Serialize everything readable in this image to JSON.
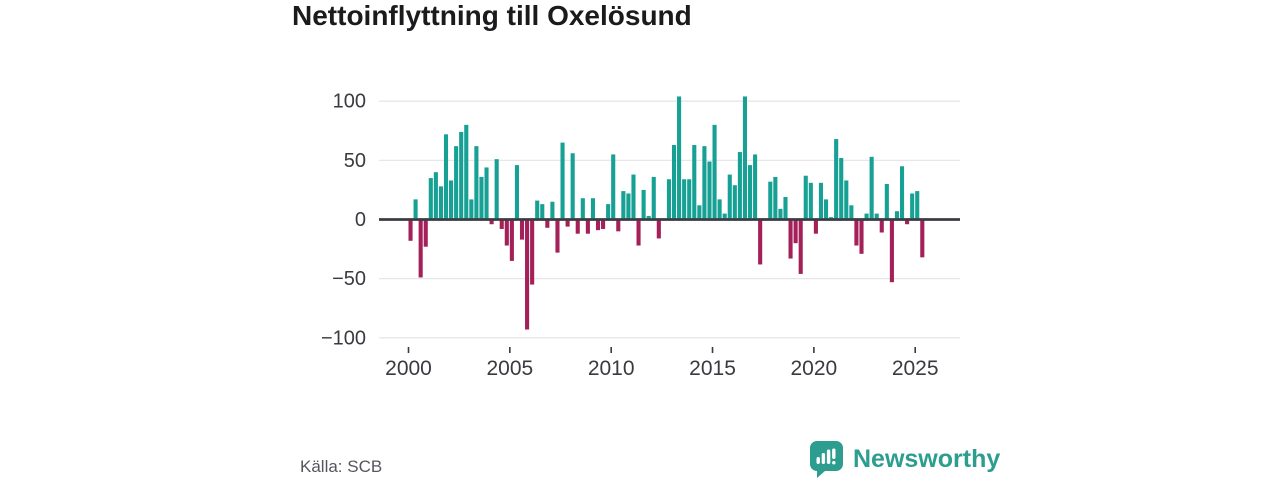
{
  "header": {
    "title": "Nettoinflyttning till Oxelösund"
  },
  "footer": {
    "source_label": "Källa: SCB",
    "brand": "Newsworthy"
  },
  "colors": {
    "positive_bar": "#17A094",
    "negative_bar": "#A32158",
    "title_text": "#1b1b1d",
    "axis_text": "#3a3a40",
    "gridline": "#e7e7e9",
    "zero_line": "#3b3b42",
    "source_text": "#56565e",
    "brand_teal": "#2D9D90",
    "logo_glyph": "#ffffff"
  },
  "chart_data": {
    "type": "bar",
    "title": "Nettoinflyttning till Oxelösund",
    "xlabel": "",
    "ylabel": "",
    "start_period": "2000Q1",
    "frequency": "quarterly",
    "values": [
      -18,
      17,
      -49,
      -23,
      35,
      40,
      28,
      72,
      33,
      62,
      74,
      80,
      17,
      62,
      36,
      44,
      -4,
      51,
      -8,
      -22,
      -35,
      46,
      -17,
      -93,
      -55,
      16,
      13,
      -7,
      15,
      -28,
      65,
      -6,
      56,
      -12,
      18,
      -12,
      18,
      -9,
      -8,
      13,
      55,
      -10,
      24,
      22,
      38,
      -22,
      25,
      3,
      36,
      -16,
      0,
      34,
      63,
      104,
      34,
      34,
      63,
      12,
      62,
      49,
      80,
      17,
      5,
      38,
      29,
      57,
      104,
      46,
      55,
      -38,
      0,
      32,
      36,
      9,
      19,
      -33,
      -20,
      -46,
      37,
      31,
      -12,
      31,
      17,
      2,
      68,
      52,
      33,
      12,
      -22,
      -29,
      5,
      53,
      5,
      -11,
      30,
      -53,
      7,
      45,
      -4,
      22,
      24,
      -32
    ],
    "yticks": [
      100,
      50,
      0,
      -50,
      -100
    ],
    "ylim": [
      -112,
      118
    ],
    "xticks": [
      2000,
      2005,
      2010,
      2015,
      2020,
      2025
    ],
    "grid": true,
    "legend": false
  }
}
